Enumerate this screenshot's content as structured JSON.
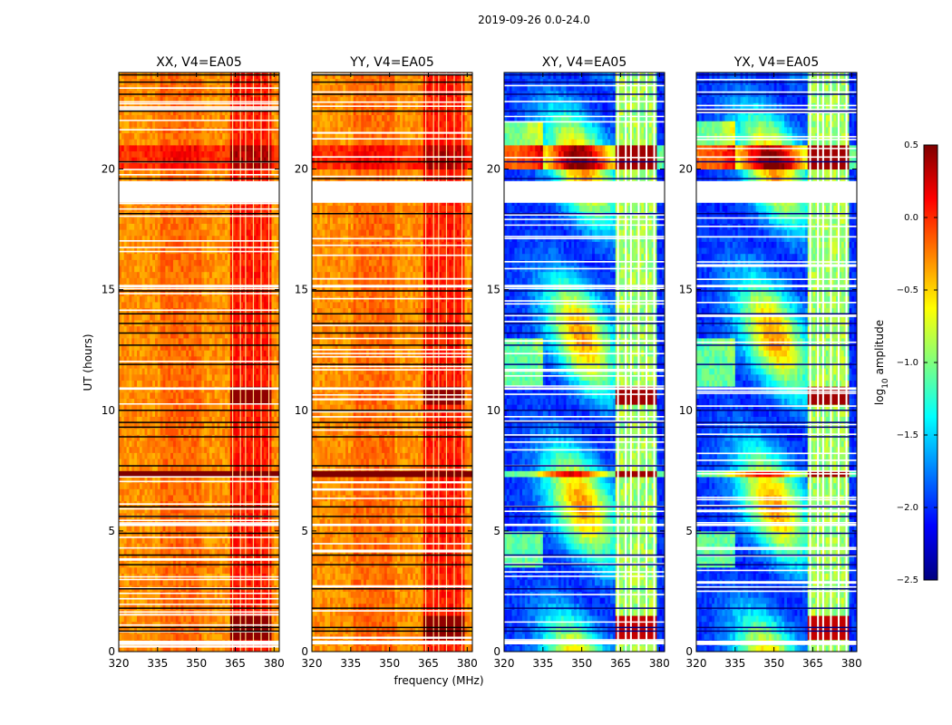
{
  "figure": {
    "suptitle": "2019-09-26 0.0-24.0"
  },
  "chart_data": {
    "type": "heatmap",
    "description_axes": "waterfall spectrograms, UT (hours) vs frequency (MHz)",
    "xlabel": "frequency (MHz)",
    "ylabel": "UT (hours)",
    "xlim": [
      320,
      382
    ],
    "ylim": [
      0,
      24
    ],
    "xticks": [
      320,
      335,
      350,
      365,
      380
    ],
    "xtick_labels": [
      "320",
      "335",
      "350",
      "365",
      "380"
    ],
    "yticks": [
      0,
      5,
      10,
      15,
      20
    ],
    "ytick_labels": [
      "0",
      "5",
      "10",
      "15",
      "20"
    ],
    "panels": [
      {
        "title": "XX, V4=EA05",
        "base_level": -0.3,
        "polarization": "parallel"
      },
      {
        "title": "YY, V4=EA05",
        "base_level": -0.3,
        "polarization": "parallel"
      },
      {
        "title": "XY, V4=EA05",
        "base_level": -2.0,
        "polarization": "cross"
      },
      {
        "title": "YX, V4=EA05",
        "base_level": -2.0,
        "polarization": "cross"
      }
    ],
    "rfi_band_mhz": [
      363,
      379
    ],
    "rfi_channels_mhz": [
      364,
      367,
      369,
      372,
      375,
      378
    ],
    "flagged_gaps_hours": [
      [
        18.6,
        19.5
      ],
      [
        0.3,
        0.45
      ],
      [
        5.2,
        5.3
      ],
      [
        10.85,
        10.95
      ],
      [
        15.1,
        15.2
      ]
    ],
    "dark_rows_hours": [
      0.85,
      1.0,
      1.8,
      2.6,
      3.6,
      4.0,
      4.9,
      5.6,
      6.0,
      7.7,
      8.9,
      9.3,
      9.5,
      10.0,
      11.9,
      12.7,
      13.2,
      13.6,
      14.0,
      14.95,
      18.15,
      19.6,
      20.3,
      22.4,
      23.1,
      23.6,
      23.9
    ],
    "saturated_rows_hours": [
      [
        7.2,
        7.6
      ],
      [
        20.0,
        21.0
      ]
    ],
    "colorbar": {
      "label": "log10 amplitude",
      "label_main": "log",
      "label_sub": "10",
      "label_rest": " amplitude",
      "range": [
        -2.5,
        0.5
      ],
      "ticks": [
        0.5,
        0.0,
        -0.5,
        -1.0,
        -1.5,
        -2.0,
        -2.5
      ],
      "tick_labels": [
        "0.5",
        "0.0",
        "−0.5",
        "−1.0",
        "−1.5",
        "−2.0",
        "−2.5"
      ],
      "colormap": "jet",
      "colormap_stops": [
        "#00007f",
        "#0000ff",
        "#007fff",
        "#00ffff",
        "#7fff7f",
        "#ffff00",
        "#ff7f00",
        "#ff0000",
        "#7f0000"
      ]
    }
  }
}
